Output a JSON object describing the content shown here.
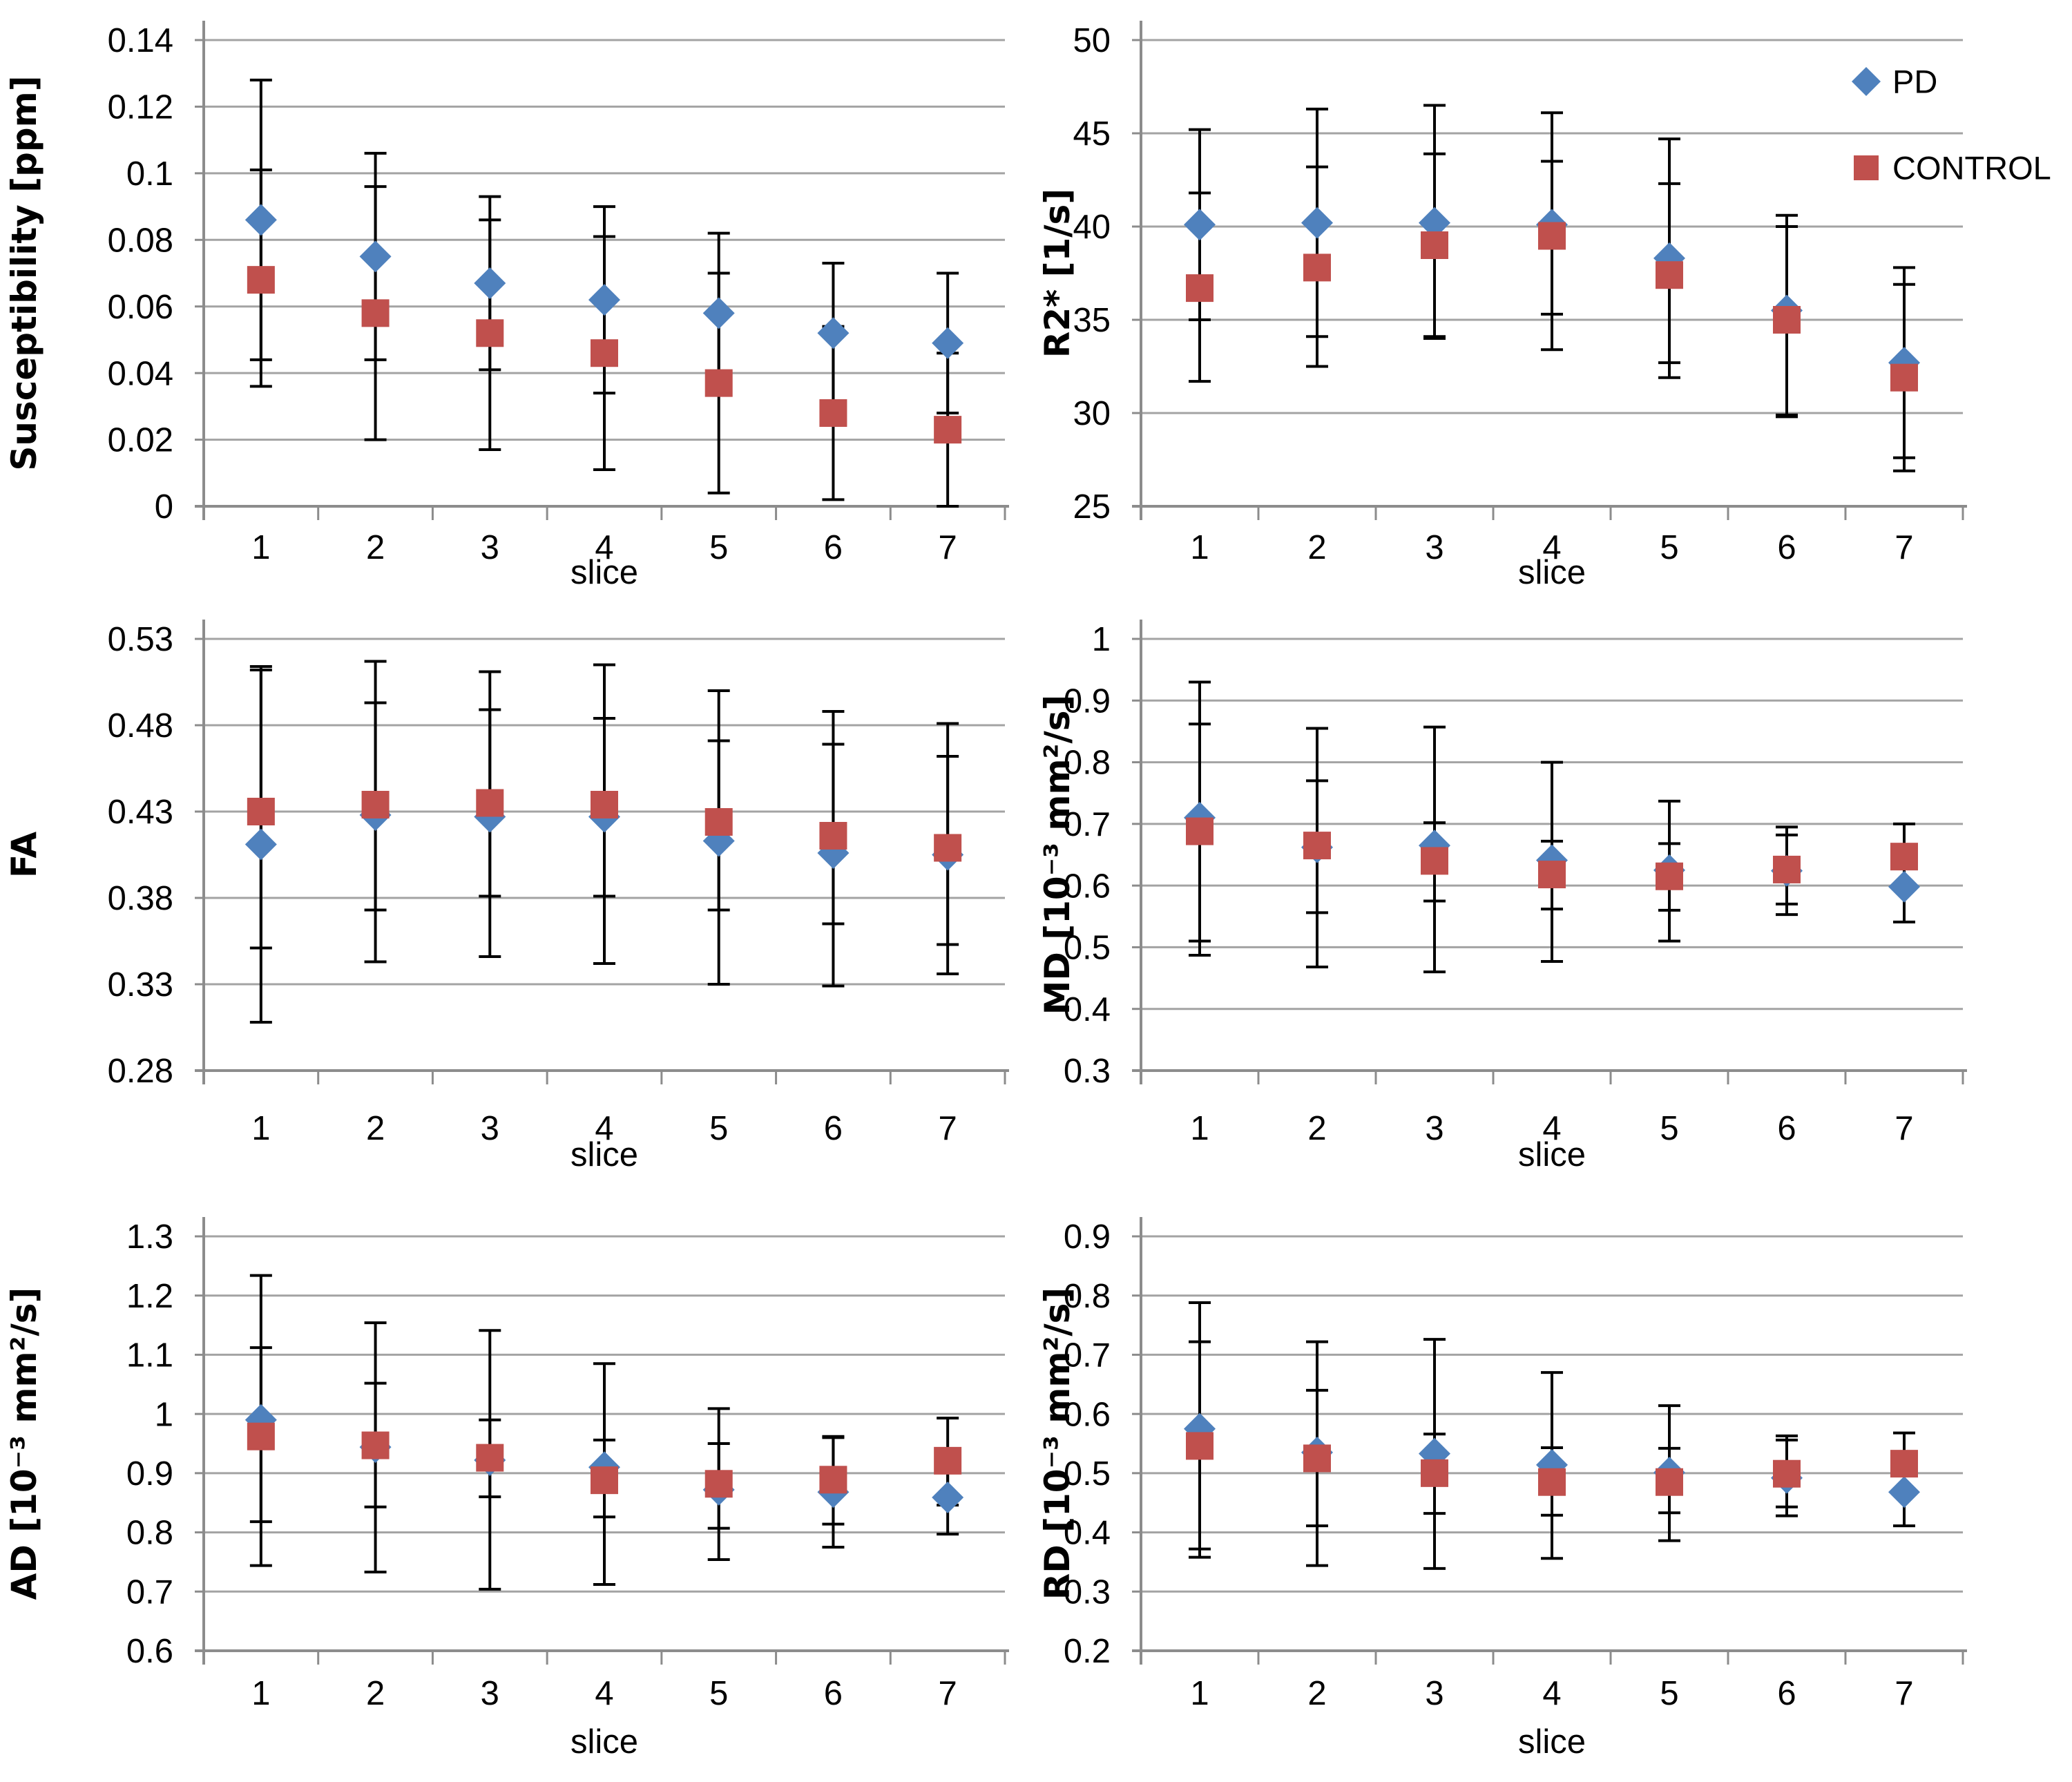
{
  "figure": {
    "xlabel": "slice",
    "legend": {
      "position": "top-right-of-r2s-panel",
      "items": [
        {
          "label": "PD",
          "marker": "diamond",
          "color": "#4F81BD"
        },
        {
          "label": "CONTROL",
          "marker": "square",
          "color": "#C0504D"
        }
      ]
    },
    "colors": {
      "pd": "#4F81BD",
      "control": "#C0504D",
      "gridline": "#A3A3A3",
      "axis": "#8C8C8C",
      "error_bar": "#000000",
      "text": "#000000",
      "background": "#FFFFFF"
    }
  },
  "chart_data": [
    {
      "id": "susceptibility",
      "type": "scatter",
      "title": "",
      "ylabel": "Susceptibility [ppm]",
      "xlabel": "slice",
      "ylim": [
        0,
        0.14
      ],
      "grid": true,
      "legend": "none",
      "yticks": [
        0,
        0.02,
        0.04,
        0.06,
        0.08,
        0.1,
        0.12,
        0.14
      ],
      "ytick_labels": [
        "0",
        "0.02",
        "0.04",
        "0.06",
        "0.08",
        "0.1",
        "0.12",
        "0.14"
      ],
      "categories": [
        "1",
        "2",
        "3",
        "4",
        "5",
        "6",
        "7"
      ],
      "series": [
        {
          "name": "PD",
          "marker": "diamond",
          "color": "#4F81BD",
          "values": [
            0.086,
            0.075,
            0.067,
            0.062,
            0.058,
            0.052,
            0.049
          ],
          "err_low": [
            0.044,
            0.044,
            0.041,
            0.034,
            0.034,
            0.031,
            0.028
          ],
          "err_high": [
            0.128,
            0.106,
            0.093,
            0.09,
            0.082,
            0.073,
            0.07
          ]
        },
        {
          "name": "CONTROL",
          "marker": "square",
          "color": "#C0504D",
          "values": [
            0.068,
            0.058,
            0.052,
            0.046,
            0.037,
            0.028,
            0.023
          ],
          "err_low": [
            0.036,
            0.02,
            0.017,
            0.011,
            0.004,
            0.002,
            0.0
          ],
          "err_high": [
            0.101,
            0.096,
            0.086,
            0.081,
            0.07,
            0.054,
            0.046
          ]
        }
      ]
    },
    {
      "id": "r2star",
      "type": "scatter",
      "title": "",
      "ylabel": "R2* [1/s]",
      "xlabel": "slice",
      "ylim": [
        25,
        50
      ],
      "grid": true,
      "legend": "top-right",
      "yticks": [
        25,
        30,
        35,
        40,
        45,
        50
      ],
      "ytick_labels": [
        "25",
        "30",
        "35",
        "40",
        "45",
        "50"
      ],
      "categories": [
        "1",
        "2",
        "3",
        "4",
        "5",
        "6",
        "7"
      ],
      "series": [
        {
          "name": "PD",
          "marker": "diamond",
          "color": "#4F81BD",
          "values": [
            40.1,
            40.2,
            40.2,
            40.1,
            38.3,
            35.5,
            32.7
          ],
          "err_low": [
            35.0,
            34.1,
            34.0,
            33.4,
            31.9,
            29.8,
            27.6
          ],
          "err_high": [
            45.2,
            46.3,
            46.5,
            46.1,
            44.7,
            40.6,
            37.8
          ]
        },
        {
          "name": "CONTROL",
          "marker": "square",
          "color": "#C0504D",
          "values": [
            36.7,
            37.8,
            39.0,
            39.5,
            37.4,
            35.0,
            31.9
          ],
          "err_low": [
            31.7,
            32.5,
            34.1,
            35.3,
            32.7,
            29.9,
            26.9
          ],
          "err_high": [
            41.8,
            43.2,
            43.9,
            43.5,
            42.3,
            40.0,
            36.9
          ]
        }
      ]
    },
    {
      "id": "fa",
      "type": "scatter",
      "title": "",
      "ylabel": "FA",
      "xlabel": "slice",
      "ylim": [
        0.28,
        0.53
      ],
      "grid": true,
      "legend": "none",
      "yticks": [
        0.28,
        0.33,
        0.38,
        0.43,
        0.48,
        0.53
      ],
      "ytick_labels": [
        "0.28",
        "0.33",
        "0.38",
        "0.43",
        "0.48",
        "0.53"
      ],
      "categories": [
        "1",
        "2",
        "3",
        "4",
        "5",
        "6",
        "7"
      ],
      "series": [
        {
          "name": "PD",
          "marker": "diamond",
          "color": "#4F81BD",
          "values": [
            0.411,
            0.428,
            0.427,
            0.427,
            0.413,
            0.406,
            0.405
          ],
          "err_low": [
            0.308,
            0.343,
            0.346,
            0.342,
            0.33,
            0.329,
            0.336
          ],
          "err_high": [
            0.514,
            0.517,
            0.511,
            0.515,
            0.5,
            0.488,
            0.481
          ]
        },
        {
          "name": "CONTROL",
          "marker": "square",
          "color": "#C0504D",
          "values": [
            0.43,
            0.434,
            0.435,
            0.434,
            0.424,
            0.416,
            0.409
          ],
          "err_low": [
            0.351,
            0.373,
            0.381,
            0.381,
            0.373,
            0.365,
            0.353
          ],
          "err_high": [
            0.512,
            0.493,
            0.489,
            0.484,
            0.471,
            0.469,
            0.462
          ]
        }
      ]
    },
    {
      "id": "md",
      "type": "scatter",
      "title": "",
      "ylabel": "MD  [10⁻³ mm²/s]",
      "xlabel": "slice",
      "ylim": [
        0.3,
        1.0
      ],
      "grid": true,
      "legend": "none",
      "yticks": [
        0.3,
        0.4,
        0.5,
        0.6,
        0.7,
        0.8,
        0.9,
        1.0
      ],
      "ytick_labels": [
        "0.3",
        "0.4",
        "0.5",
        "0.6",
        "0.7",
        "0.8",
        "0.9",
        "1"
      ],
      "categories": [
        "1",
        "2",
        "3",
        "4",
        "5",
        "6",
        "7"
      ],
      "series": [
        {
          "name": "PD",
          "marker": "diamond",
          "color": "#4F81BD",
          "values": [
            0.71,
            0.662,
            0.665,
            0.641,
            0.625,
            0.624,
            0.598
          ],
          "err_low": [
            0.487,
            0.468,
            0.46,
            0.477,
            0.51,
            0.553,
            0.541
          ],
          "err_high": [
            0.93,
            0.855,
            0.857,
            0.8,
            0.737,
            0.695,
            0.655
          ]
        },
        {
          "name": "CONTROL",
          "marker": "square",
          "color": "#C0504D",
          "values": [
            0.688,
            0.665,
            0.64,
            0.618,
            0.615,
            0.626,
            0.647
          ],
          "err_low": [
            0.51,
            0.556,
            0.575,
            0.562,
            0.56,
            0.57,
            0.594
          ],
          "err_high": [
            0.862,
            0.77,
            0.702,
            0.672,
            0.668,
            0.682,
            0.7
          ]
        }
      ]
    },
    {
      "id": "ad",
      "type": "scatter",
      "title": "",
      "ylabel": "AD  [10⁻³ mm²/s]",
      "xlabel": "slice",
      "ylim": [
        0.6,
        1.3
      ],
      "grid": true,
      "legend": "none",
      "yticks": [
        0.6,
        0.7,
        0.8,
        0.9,
        1.0,
        1.1,
        1.2,
        1.3
      ],
      "ytick_labels": [
        "0.6",
        "0.7",
        "0.8",
        "0.9",
        "1",
        "1.1",
        "1.2",
        "1.3"
      ],
      "categories": [
        "1",
        "2",
        "3",
        "4",
        "5",
        "6",
        "7"
      ],
      "series": [
        {
          "name": "PD",
          "marker": "diamond",
          "color": "#4F81BD",
          "values": [
            0.99,
            0.944,
            0.922,
            0.91,
            0.872,
            0.868,
            0.859
          ],
          "err_low": [
            0.744,
            0.733,
            0.704,
            0.712,
            0.754,
            0.775,
            0.797
          ],
          "err_high": [
            1.234,
            1.154,
            1.141,
            1.085,
            1.009,
            0.96,
            0.921
          ]
        },
        {
          "name": "CONTROL",
          "marker": "square",
          "color": "#C0504D",
          "values": [
            0.962,
            0.947,
            0.926,
            0.888,
            0.882,
            0.889,
            0.921
          ],
          "err_low": [
            0.818,
            0.843,
            0.86,
            0.826,
            0.807,
            0.814,
            0.846
          ],
          "err_high": [
            1.112,
            1.052,
            0.99,
            0.956,
            0.95,
            0.962,
            0.993
          ]
        }
      ]
    },
    {
      "id": "rd",
      "type": "scatter",
      "title": "",
      "ylabel": "RD  [10⁻³ mm²/s]",
      "xlabel": "slice",
      "ylim": [
        0.2,
        0.9
      ],
      "grid": true,
      "legend": "none",
      "yticks": [
        0.2,
        0.3,
        0.4,
        0.5,
        0.6,
        0.7,
        0.8,
        0.9
      ],
      "ytick_labels": [
        "0.2",
        "0.3",
        "0.4",
        "0.5",
        "0.6",
        "0.7",
        "0.8",
        "0.9"
      ],
      "categories": [
        "1",
        "2",
        "3",
        "4",
        "5",
        "6",
        "7"
      ],
      "series": [
        {
          "name": "PD",
          "marker": "diamond",
          "color": "#4F81BD",
          "values": [
            0.575,
            0.535,
            0.533,
            0.514,
            0.501,
            0.492,
            0.468
          ],
          "err_low": [
            0.358,
            0.344,
            0.339,
            0.356,
            0.386,
            0.428,
            0.411
          ],
          "err_high": [
            0.788,
            0.722,
            0.726,
            0.67,
            0.614,
            0.556,
            0.525
          ]
        },
        {
          "name": "CONTROL",
          "marker": "square",
          "color": "#C0504D",
          "values": [
            0.546,
            0.525,
            0.5,
            0.485,
            0.485,
            0.499,
            0.516
          ],
          "err_low": [
            0.372,
            0.411,
            0.432,
            0.429,
            0.433,
            0.443,
            0.465
          ],
          "err_high": [
            0.722,
            0.64,
            0.566,
            0.543,
            0.542,
            0.563,
            0.568
          ]
        }
      ]
    }
  ]
}
